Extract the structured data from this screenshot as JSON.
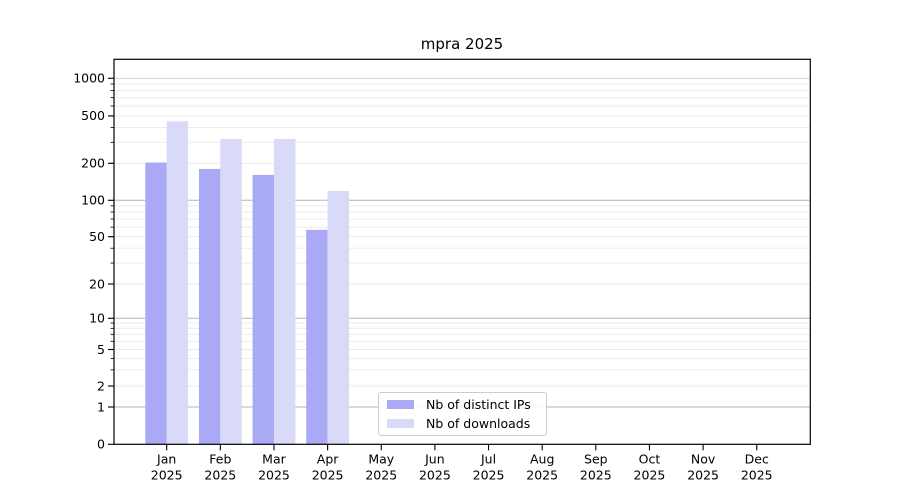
{
  "title": "mpra 2025",
  "chart_data": {
    "type": "bar",
    "title": "mpra 2025",
    "xlabel": "",
    "ylabel": "",
    "scale": "symlog",
    "grid": true,
    "legend_position": "lower-center",
    "categories": [
      "Jan",
      "Feb",
      "Mar",
      "Apr",
      "May",
      "Jun",
      "Jul",
      "Aug",
      "Sep",
      "Oct",
      "Nov",
      "Dec"
    ],
    "category_year": "2025",
    "yticks": [
      0,
      1,
      2,
      5,
      10,
      20,
      50,
      100,
      200,
      500,
      1000
    ],
    "ylim": [
      0,
      1400
    ],
    "series": [
      {
        "name": "Nb of distinct IPs",
        "color": "#a9a9f5",
        "values": [
          203,
          180,
          161,
          57,
          0,
          0,
          0,
          0,
          0,
          0,
          0,
          0
        ]
      },
      {
        "name": "Nb of downloads",
        "color": "#d9d9f8",
        "values": [
          450,
          320,
          320,
          119,
          0,
          0,
          0,
          0,
          0,
          0,
          0,
          0
        ]
      }
    ],
    "colors": {
      "major_grid": "#b5b5b5",
      "minor_grid": "#eaeaea",
      "upper_grid": "#d0d0d0",
      "spine": "#000000",
      "text": "#000000",
      "legend_border": "#cccccc"
    }
  }
}
